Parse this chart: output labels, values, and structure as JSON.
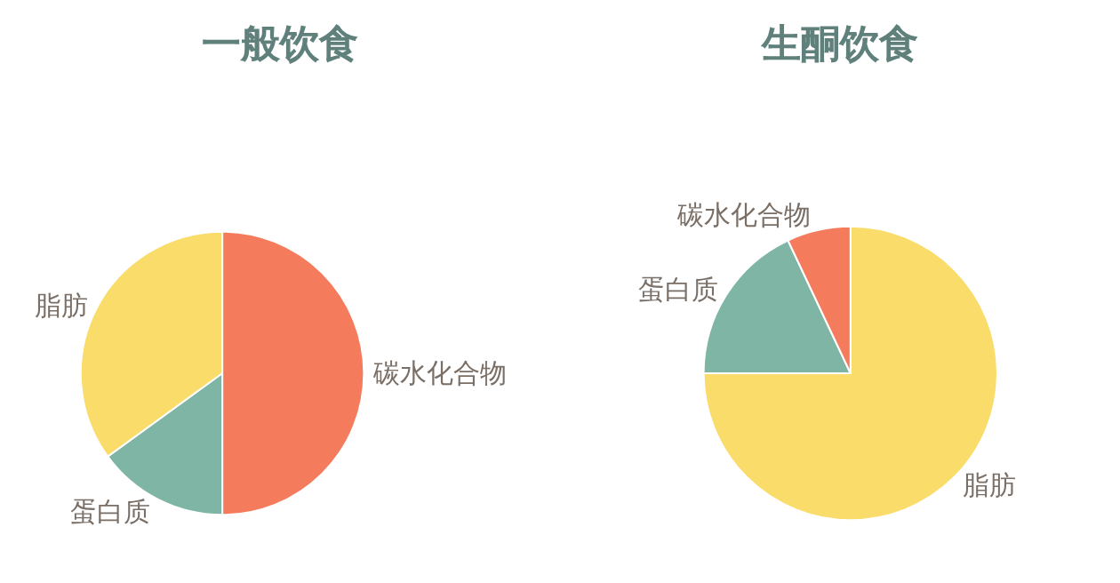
{
  "chart_data": [
    {
      "type": "pie",
      "title": "一般饮食",
      "categories": [
        "碳水化合物",
        "蛋白质",
        "脂肪"
      ],
      "values": [
        50,
        15,
        35
      ],
      "colors": [
        "#f47b5c",
        "#7fb5a4",
        "#f9dc6a"
      ]
    },
    {
      "type": "pie",
      "title": "生酮饮食",
      "categories": [
        "脂肪",
        "蛋白质",
        "碳水化合物"
      ],
      "values": [
        75,
        18,
        7
      ],
      "colors": [
        "#f9dc6a",
        "#7fb5a4",
        "#f47b5c"
      ]
    }
  ]
}
